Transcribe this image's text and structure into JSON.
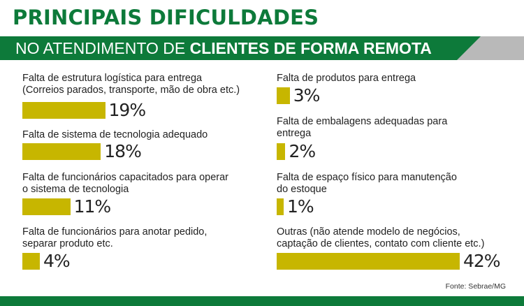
{
  "title_line1": "PRINCIPAIS DIFICULDADES",
  "title_line2_normal": "NO ATENDIMENTO DE",
  "title_line2_bold": "CLIENTES DE FORMA REMOTA",
  "source": "Fonte: Sebrae/MG",
  "colors": {
    "green": "#0d7a3a",
    "bar": "#c7b600",
    "band_gray": "#b9b9b9"
  },
  "chart_data": {
    "type": "bar",
    "max_value": 42,
    "items": [
      {
        "label_lines": [
          "Falta de estrutura logística para entrega",
          "(Correios parados, transporte, mão de obra etc.)"
        ],
        "value": 19,
        "value_label": "19%"
      },
      {
        "label_lines": [
          "Falta de sistema de tecnologia adequado"
        ],
        "value": 18,
        "value_label": "18%"
      },
      {
        "label_lines": [
          "Falta de funcionários capacitados para operar",
          "o sistema de tecnologia"
        ],
        "value": 11,
        "value_label": "11%"
      },
      {
        "label_lines": [
          "Falta de funcionários para anotar pedido,",
          "separar produto etc."
        ],
        "value": 4,
        "value_label": "4%"
      },
      {
        "label_lines": [
          "Falta de produtos para entrega"
        ],
        "value": 3,
        "value_label": "3%"
      },
      {
        "label_lines": [
          "Falta de embalagens adequadas para",
          "entrega"
        ],
        "value": 2,
        "value_label": "2%"
      },
      {
        "label_lines": [
          "Falta de espaço físico para manutenção",
          "do estoque"
        ],
        "value": 1,
        "value_label": "1%"
      },
      {
        "label_lines": [
          "Outras (não atende modelo de negócios,",
          "captação de clientes, contato com cliente etc.)"
        ],
        "value": 42,
        "value_label": "42%"
      }
    ]
  }
}
